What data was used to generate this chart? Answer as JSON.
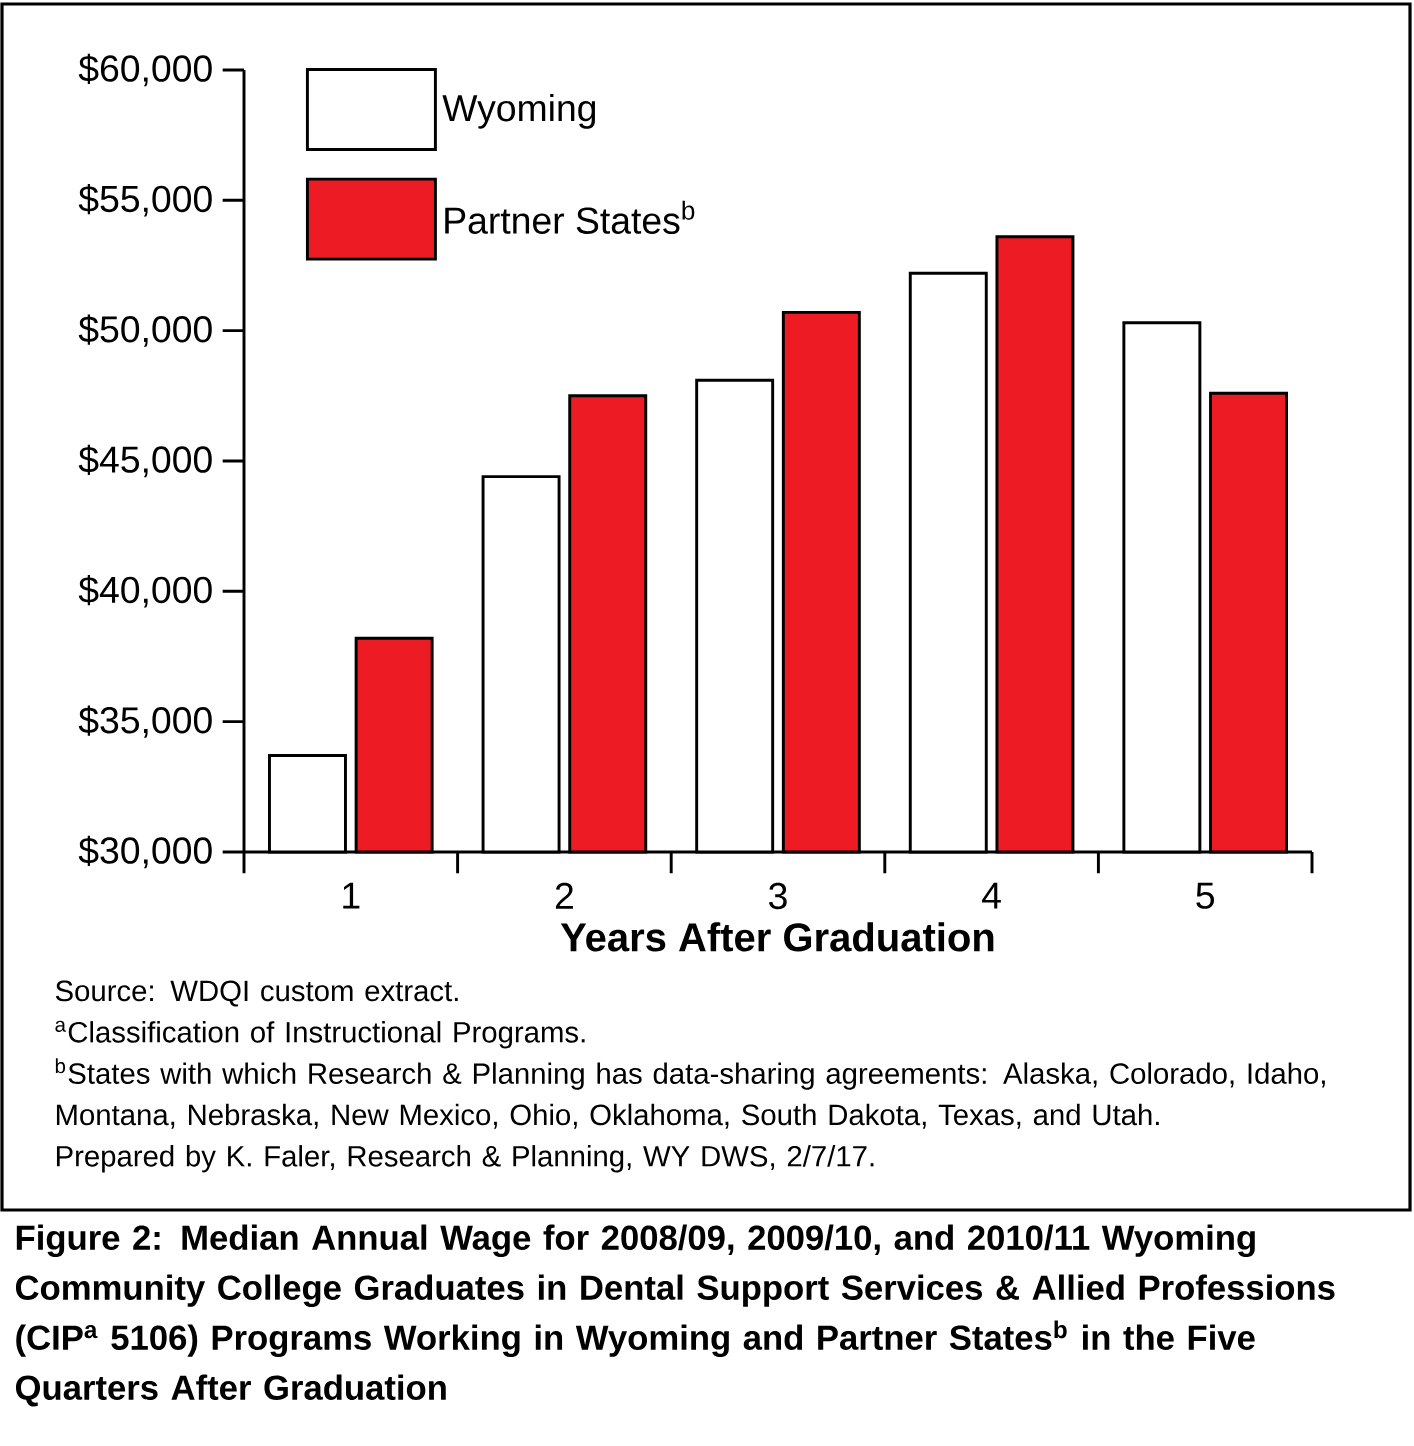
{
  "chart_data": {
    "type": "bar",
    "title": "Figure 2: Median Annual Wage for 2008/09, 2009/10, and 2010/11 Wyoming Community College Graduates in Dental Support Services & Allied Professions (CIP$^{a}$ 5106) Programs Working in Wyoming and Partner States$^{b}$ in the Five Quarters After Graduation",
    "xlabel": "Years After Graduation",
    "categories": [
      "1",
      "2",
      "3",
      "4",
      "5"
    ],
    "series": [
      {
        "name": "Wyoming",
        "color": "#ffffff",
        "values": [
          33700,
          44400,
          48100,
          52200,
          50300
        ]
      },
      {
        "name": "Partner States$^{b}$",
        "color": "#ed1c24",
        "values": [
          38200,
          47500,
          50700,
          53600,
          47600
        ]
      }
    ],
    "ylim": [
      30000,
      60000
    ],
    "yticks": [
      {
        "value": 30000,
        "label": "$30,000"
      },
      {
        "value": 35000,
        "label": "$35,000"
      },
      {
        "value": 40000,
        "label": "$40,000"
      },
      {
        "value": 45000,
        "label": "$45,000"
      },
      {
        "value": 50000,
        "label": "$50,000"
      },
      {
        "value": 55000,
        "label": "$55,000"
      },
      {
        "value": 60000,
        "label": "$60,000"
      }
    ],
    "legend": "top left",
    "grid": false,
    "annotations": [
      "Source: WDQI custom extract.",
      "$^{a}$Classification of Instructional Programs.",
      "$^{b}$States with which Research & Planning has data-sharing agreements: Alaska, Colorado, Idaho, Montana, Nebraska, New Mexico, Ohio, Oklahoma, South Dakota, Texas, and Utah.",
      "Prepared by K. Faler, Research & Planning, WY DWS, 2/7/17."
    ]
  }
}
